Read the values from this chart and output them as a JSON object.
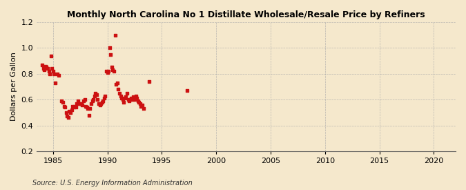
{
  "title": "Monthly North Carolina No 1 Distillate Wholesale/Resale Price by Refiners",
  "ylabel": "Dollars per Gallon",
  "source": "Source: U.S. Energy Information Administration",
  "background_color": "#f5e8cc",
  "plot_bg_color": "#f5e8cc",
  "marker_color": "#cc1111",
  "xlim": [
    1983.5,
    2022
  ],
  "ylim": [
    0.2,
    1.2
  ],
  "xticks": [
    1985,
    1990,
    1995,
    2000,
    2005,
    2010,
    2015,
    2020
  ],
  "yticks": [
    0.2,
    0.4,
    0.6,
    0.8,
    1.0,
    1.2
  ],
  "data_points": [
    [
      1984.0,
      0.87
    ],
    [
      1984.1,
      0.84
    ],
    [
      1984.2,
      0.83
    ],
    [
      1984.3,
      0.86
    ],
    [
      1984.4,
      0.85
    ],
    [
      1984.5,
      0.84
    ],
    [
      1984.6,
      0.82
    ],
    [
      1984.7,
      0.8
    ],
    [
      1984.8,
      0.94
    ],
    [
      1984.9,
      0.84
    ],
    [
      1985.0,
      0.82
    ],
    [
      1985.1,
      0.8
    ],
    [
      1985.2,
      0.73
    ],
    [
      1985.4,
      0.8
    ],
    [
      1985.5,
      0.79
    ],
    [
      1985.8,
      0.59
    ],
    [
      1985.9,
      0.58
    ],
    [
      1986.0,
      0.55
    ],
    [
      1986.1,
      0.54
    ],
    [
      1986.2,
      0.5
    ],
    [
      1986.3,
      0.47
    ],
    [
      1986.4,
      0.46
    ],
    [
      1986.5,
      0.51
    ],
    [
      1986.6,
      0.5
    ],
    [
      1986.7,
      0.52
    ],
    [
      1986.8,
      0.55
    ],
    [
      1986.9,
      0.54
    ],
    [
      1987.0,
      0.55
    ],
    [
      1987.1,
      0.54
    ],
    [
      1987.2,
      0.57
    ],
    [
      1987.3,
      0.59
    ],
    [
      1987.4,
      0.57
    ],
    [
      1987.5,
      0.57
    ],
    [
      1987.6,
      0.57
    ],
    [
      1987.7,
      0.56
    ],
    [
      1987.8,
      0.59
    ],
    [
      1987.9,
      0.6
    ],
    [
      1988.0,
      0.55
    ],
    [
      1988.1,
      0.54
    ],
    [
      1988.2,
      0.53
    ],
    [
      1988.3,
      0.48
    ],
    [
      1988.4,
      0.53
    ],
    [
      1988.5,
      0.57
    ],
    [
      1988.6,
      0.59
    ],
    [
      1988.7,
      0.6
    ],
    [
      1988.8,
      0.63
    ],
    [
      1988.9,
      0.65
    ],
    [
      1989.0,
      0.64
    ],
    [
      1989.1,
      0.6
    ],
    [
      1989.2,
      0.57
    ],
    [
      1989.3,
      0.56
    ],
    [
      1989.4,
      0.57
    ],
    [
      1989.5,
      0.58
    ],
    [
      1989.6,
      0.59
    ],
    [
      1989.7,
      0.61
    ],
    [
      1989.8,
      0.63
    ],
    [
      1989.9,
      0.82
    ],
    [
      1990.0,
      0.81
    ],
    [
      1990.1,
      0.82
    ],
    [
      1990.2,
      1.0
    ],
    [
      1990.3,
      0.95
    ],
    [
      1990.4,
      0.85
    ],
    [
      1990.5,
      0.83
    ],
    [
      1990.6,
      0.82
    ],
    [
      1990.7,
      1.1
    ],
    [
      1990.8,
      0.72
    ],
    [
      1990.9,
      0.73
    ],
    [
      1991.0,
      0.68
    ],
    [
      1991.1,
      0.65
    ],
    [
      1991.2,
      0.63
    ],
    [
      1991.3,
      0.61
    ],
    [
      1991.4,
      0.6
    ],
    [
      1991.5,
      0.58
    ],
    [
      1991.6,
      0.61
    ],
    [
      1991.7,
      0.62
    ],
    [
      1991.8,
      0.65
    ],
    [
      1991.9,
      0.6
    ],
    [
      1992.0,
      0.59
    ],
    [
      1992.1,
      0.6
    ],
    [
      1992.2,
      0.61
    ],
    [
      1992.3,
      0.6
    ],
    [
      1992.4,
      0.62
    ],
    [
      1992.5,
      0.6
    ],
    [
      1992.6,
      0.63
    ],
    [
      1992.7,
      0.61
    ],
    [
      1992.8,
      0.59
    ],
    [
      1992.9,
      0.58
    ],
    [
      1993.0,
      0.57
    ],
    [
      1993.1,
      0.55
    ],
    [
      1993.2,
      0.56
    ],
    [
      1993.3,
      0.53
    ],
    [
      1993.8,
      0.74
    ],
    [
      1997.3,
      0.67
    ]
  ]
}
